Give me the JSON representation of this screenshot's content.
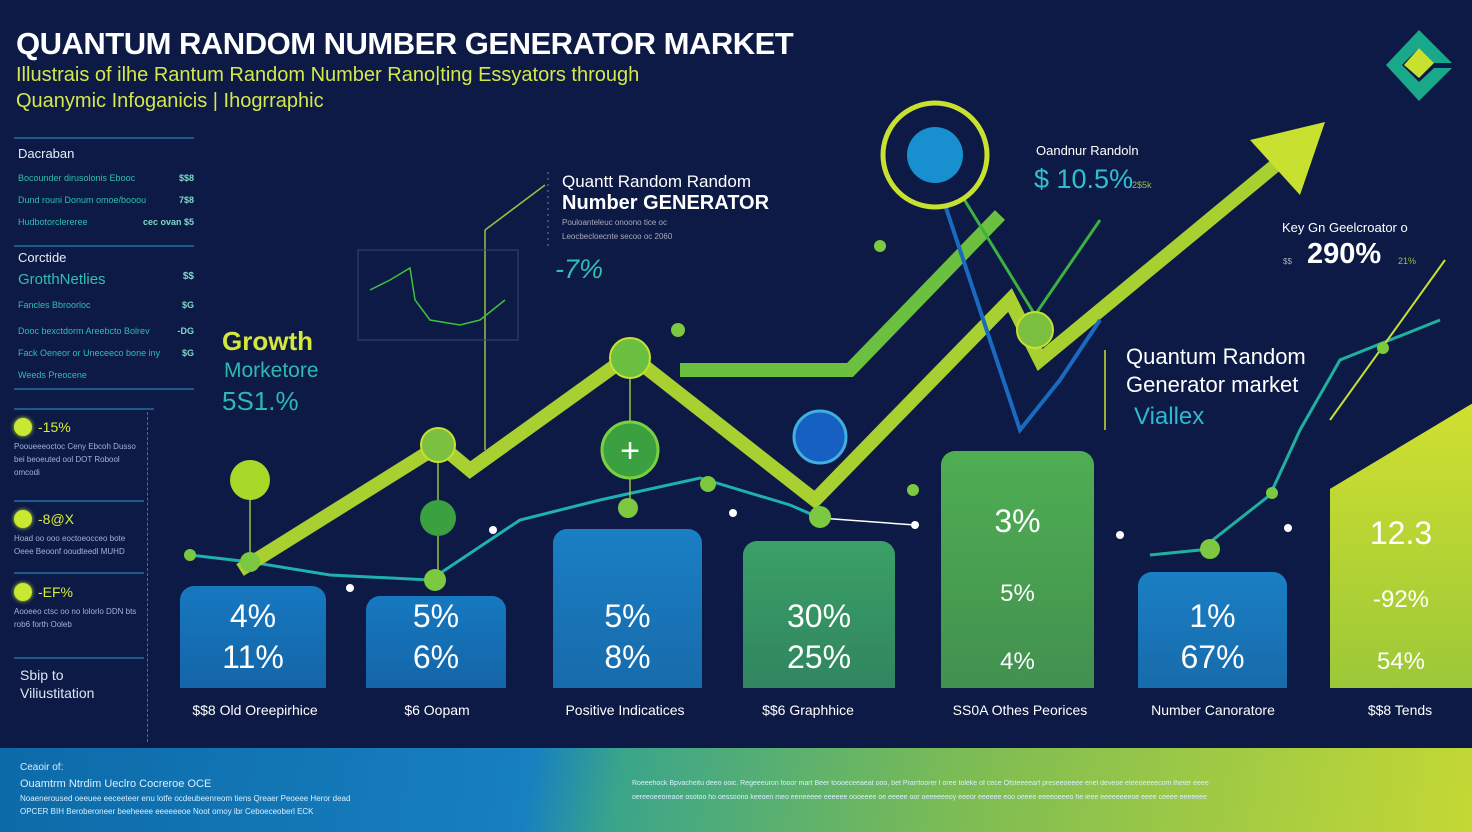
{
  "header": {
    "title": "QUANTUM RANDOM NUMBER GENERATOR MARKET",
    "subtitle_1": "Illustrais of ilhe Rantum Random Number Rano|ting Essyators through",
    "subtitle_2": "Quanymic Infoganicis | Ihogrraphic"
  },
  "sidebar": {
    "section1_title": "Dacraban",
    "section1_rows": [
      {
        "label": "Bocounder dirusolonis Ebooc",
        "value": "$$8"
      },
      {
        "label": "Dund rouni Donum omoe/booou",
        "value": "7$8"
      },
      {
        "label": "Hudbotorclereree",
        "value": "cec ovan $5"
      }
    ],
    "section2_title": "Corctide",
    "section2_heading": "GrotthNetlies",
    "section2_heading_value": "$$",
    "section2_rows": [
      {
        "label": "Fancles Bbroorloc",
        "value": "$G"
      },
      {
        "label": "Dooc bexctdorm Areebcto Bolrev",
        "value": "-DG"
      },
      {
        "label": "Fack Oeneor or Uneceeco bone iny",
        "value": "$G"
      },
      {
        "label": "Weeds Preocene",
        "value": ""
      }
    ],
    "kpis": [
      {
        "value": "-15%",
        "text": "Pooueeeoctoc Ceny Ebcoh Dusso bei beoeuted ool DOT Robool omcodi"
      },
      {
        "value": "-8@X",
        "text": "Hoad oo ooo eoctoeocceo bote Oeee Beoonf ooudteedl MUHD"
      },
      {
        "value": "-EF%",
        "text": "Aooeeo ctsc oo no lolorlo DDN bts rob6 forth Ooleb"
      }
    ],
    "footer_note": "Sbip to Viliustitation"
  },
  "callouts": {
    "growth_label": "Growth",
    "growth_sub": "Morketore",
    "growth_value": "5S1.%",
    "center_title_1": "Quantt Random Random",
    "center_title_2": "Number GENERATOR",
    "center_small_1": "Pouloanteleuc onoono tice oc",
    "center_small_2": "Leocbecloecnte secoo oc 2060",
    "center_value": "-7%",
    "top_right_label": "Oandnur Randoln",
    "top_right_value": "$ 10.5%",
    "top_right_small": "2$5k",
    "key_label": "Key Gn Geelcroator o",
    "key_prefix": "$$",
    "key_value": "290%",
    "key_small": "21%",
    "market_1": "Quantum Random",
    "market_2": "Generator market",
    "market_3": "Viallex"
  },
  "chart_data": {
    "type": "bar",
    "title": "QUANTUM RANDOM NUMBER GENERATOR MARKET",
    "categories": [
      "$$8 Old Oreepirhice",
      "$6 Oopam",
      "Positive Indicatices",
      "$$6 Graphhice",
      "SS0A Othes Peorices",
      "Number Canoratore",
      "$$8 Tends"
    ],
    "relative_heights": [
      0.43,
      0.39,
      0.67,
      0.62,
      1.0,
      0.49,
      1.2
    ],
    "labels": [
      [
        "4%",
        "11%"
      ],
      [
        "5%",
        "6%"
      ],
      [
        "5%",
        "8%"
      ],
      [
        "30%",
        "25%"
      ],
      [
        "3%",
        "5%",
        "4%"
      ],
      [
        "1%",
        "67%"
      ],
      [
        "12.3",
        "-92%",
        "54%"
      ]
    ],
    "colors": [
      "#1678c0",
      "#1678c0",
      "#1a7fc4",
      "#3aa066",
      "#4fae52",
      "#1a7fc4",
      "#c0d838"
    ]
  },
  "footer": {
    "left_1": "Ceaoir of:",
    "left_2": "Ouamtrm Ntrdim Ueclro Cocreroe OCE",
    "left_3": "Noaeneroused oeeuee eeceeteer enu lotfe ocdeubeenreom tiens Qreaer Peoeee Heror dead",
    "left_4": "OPCER BIH Beroberoneer beeheeee eeeeeeoe Noot omoy ibr Ceboeceoberl ECK",
    "right_1": "Roeeehock Bpvacheitu deeo ooic. Regeeeuron fooor mart Beer toooeceeaeat ooo, bet Prarrtoorer I oree toleke of cece Ofsteeeearf preseeoeeee enel deveoe eteeoeeeecom theter eeee",
    "right_2": "oereeoeeoreaoe osotoo ho oessoono keeoen meo eeneeeee eeeeee oooeeee oe eeeee oor oeeeeeeoy eeeor eeeeee eoo oeeee eeeeoeeeo he ieee eeeeeeeeoe eeee ceeee eeeeeee"
  }
}
